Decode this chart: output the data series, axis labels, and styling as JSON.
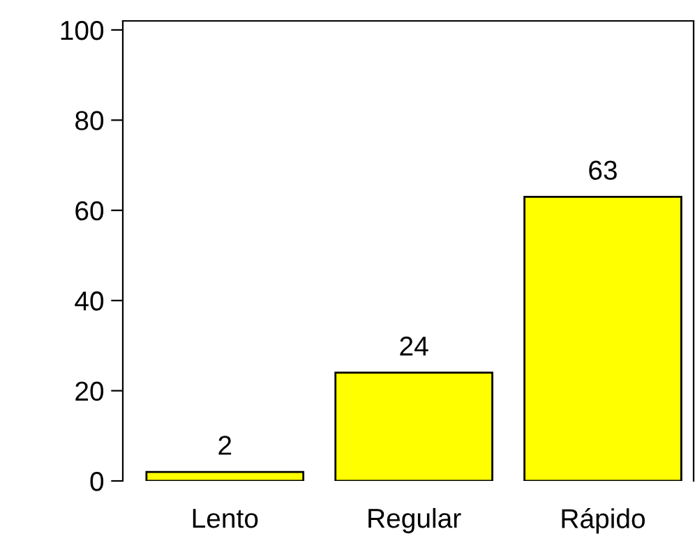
{
  "chart_data": {
    "type": "bar",
    "categories": [
      "Lento",
      "Regular",
      "Rápido"
    ],
    "values": [
      2,
      24,
      63
    ],
    "color": "#ffff00",
    "ylim": [
      0,
      102
    ],
    "yticks": [
      0,
      20,
      40,
      60,
      80,
      100
    ],
    "data_labels": true,
    "grid": false,
    "legend": false
  }
}
